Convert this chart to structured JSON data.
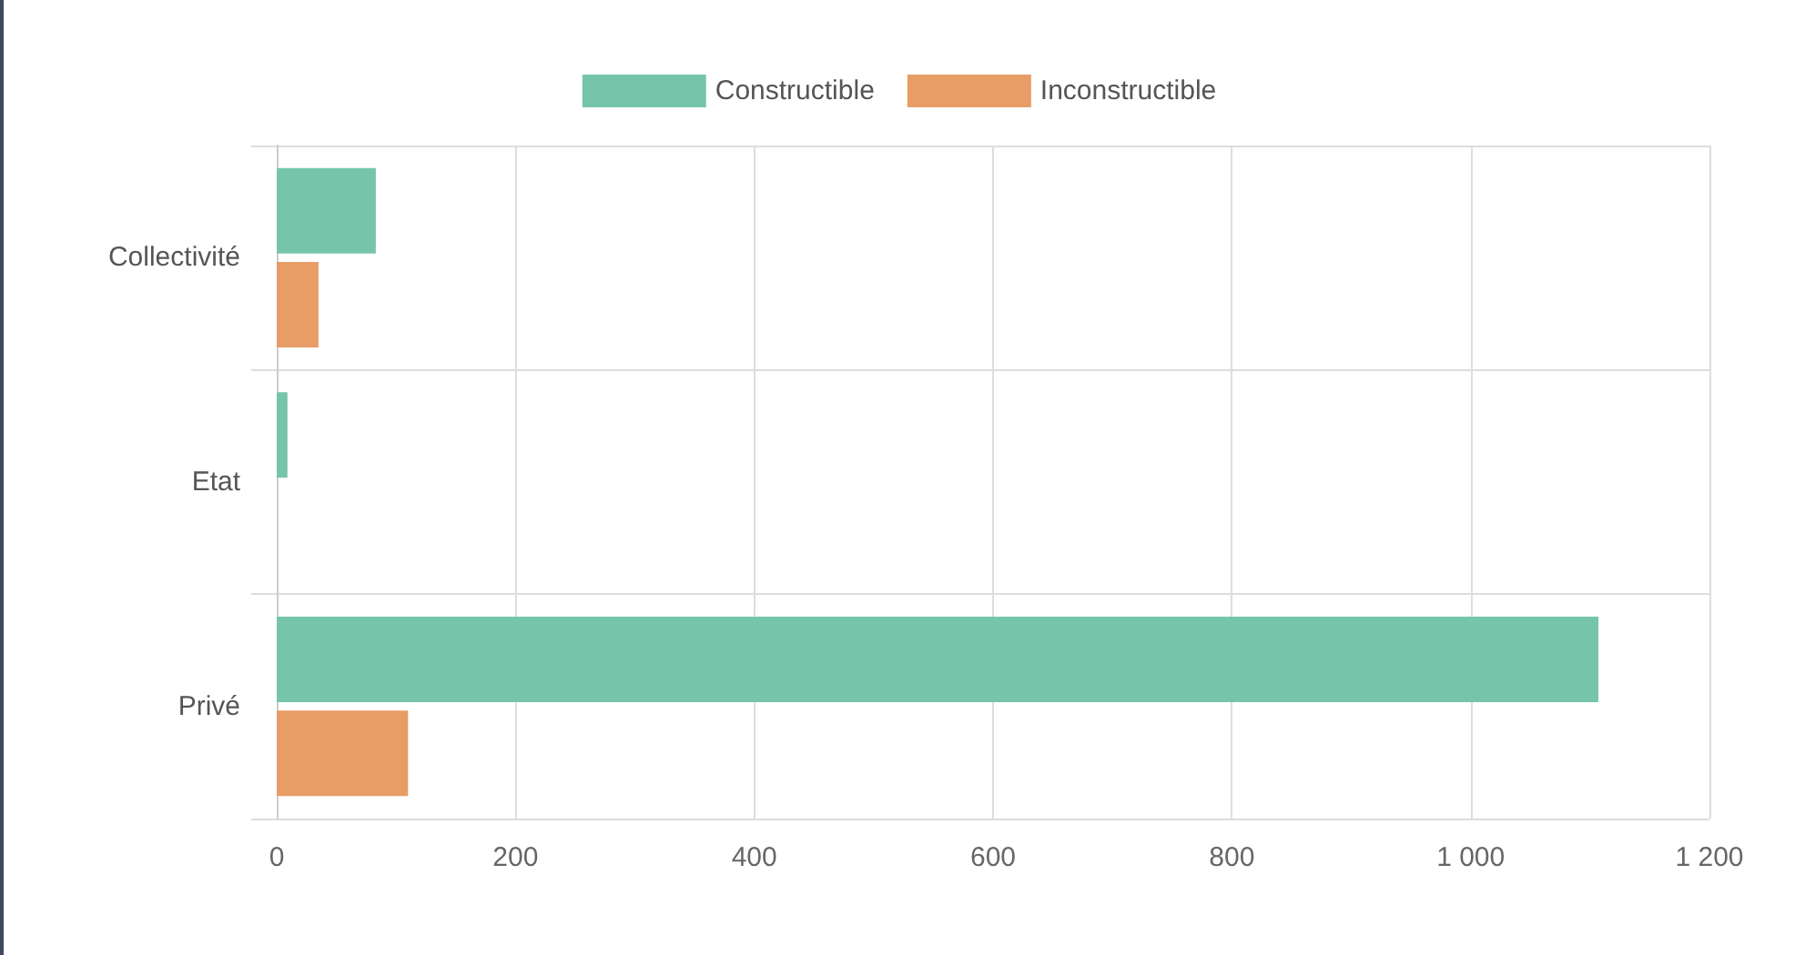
{
  "chart_data": {
    "type": "bar",
    "orientation": "horizontal",
    "categories": [
      "Collectivité",
      "Etat",
      "Privé"
    ],
    "series": [
      {
        "name": "Constructible",
        "color": "#76c5ab",
        "values": [
          83,
          9,
          1107
        ]
      },
      {
        "name": "Inconstructible",
        "color": "#e89d67",
        "values": [
          35,
          null,
          110
        ]
      }
    ],
    "xlim": [
      0,
      1200
    ],
    "xticks": [
      0,
      200,
      400,
      600,
      800,
      {
        "value": 1000,
        "label": "1 000"
      },
      {
        "value": 1200,
        "label": "1 200"
      }
    ],
    "grid": true,
    "legend": "top"
  }
}
